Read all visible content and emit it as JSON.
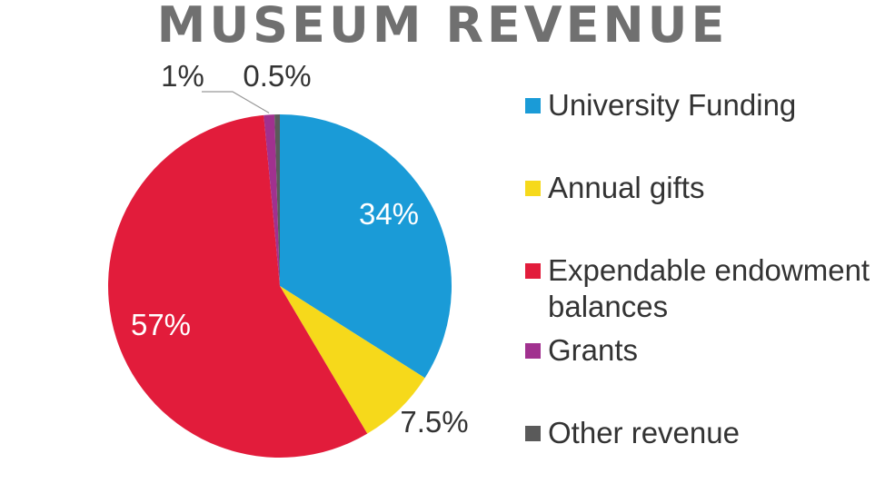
{
  "chart_data": {
    "type": "pie",
    "title": "MUSEUM REVENUE",
    "slices": [
      {
        "name": "University Funding",
        "value": 34,
        "label": "34%",
        "color": "#1a9bd7"
      },
      {
        "name": "Annual gifts",
        "value": 7.5,
        "label": "7.5%",
        "color": "#f6d91b"
      },
      {
        "name": "Expendable endowment balances",
        "value": 57,
        "label": "57%",
        "color": "#e21c3b"
      },
      {
        "name": "Grants",
        "value": 1,
        "label": "1%",
        "color": "#a1318f"
      },
      {
        "name": "Other revenue",
        "value": 0.5,
        "label": "0.5%",
        "color": "#5a5a5a"
      }
    ],
    "legend_position": "right"
  }
}
